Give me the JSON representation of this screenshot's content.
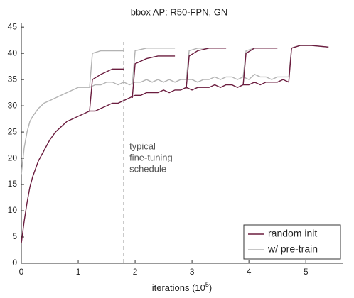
{
  "chart_data": {
    "type": "line",
    "title": "bbox AP: R50-FPN, GN",
    "xlabel": [
      "iterations (10",
      "5",
      ")"
    ],
    "x": [
      0,
      0.05,
      0.1,
      0.15,
      0.2,
      0.3,
      0.4,
      0.5,
      0.6,
      0.7,
      0.8,
      0.9,
      1.0,
      1.1,
      1.2,
      1.3,
      1.4,
      1.5,
      1.6,
      1.7,
      1.8,
      1.9,
      2.0,
      2.1,
      2.2,
      2.3,
      2.4,
      2.5,
      2.6,
      2.7,
      2.8,
      2.9,
      3.0,
      3.1,
      3.2,
      3.3,
      3.4,
      3.5,
      3.6,
      3.7,
      3.8,
      3.9,
      4.0,
      4.1,
      4.2,
      4.3,
      4.4,
      4.5,
      4.6,
      4.7
    ],
    "series": [
      {
        "name": "random init",
        "color": "#6b1d3f",
        "values": [
          3.8,
          8,
          11.5,
          14.5,
          16.5,
          19.5,
          21.5,
          23.5,
          25,
          26,
          27,
          27.5,
          28,
          28.5,
          29,
          29,
          29.5,
          30,
          30.5,
          30.5,
          31,
          31.5,
          32,
          32,
          32.5,
          32.5,
          32.5,
          33,
          32.5,
          33,
          33,
          33.5,
          33,
          33.5,
          33.5,
          33.5,
          34,
          33.5,
          34,
          34,
          33.5,
          34,
          34,
          34.5,
          34,
          34.5,
          34.5,
          34.5,
          35,
          34.5
        ],
        "branches": [
          {
            "x": [
              1.2,
              1.25,
              1.4,
              1.6,
              1.8
            ],
            "values": [
              29,
              35,
              36,
              37,
              37
            ]
          },
          {
            "x": [
              1.95,
              2.0,
              2.2,
              2.4,
              2.7
            ],
            "values": [
              31.5,
              38,
              39,
              39.5,
              39.5
            ]
          },
          {
            "x": [
              2.9,
              2.95,
              3.1,
              3.3,
              3.6
            ],
            "values": [
              33.5,
              39.5,
              40.5,
              41,
              41
            ]
          },
          {
            "x": [
              3.9,
              3.95,
              4.1,
              4.3,
              4.5
            ],
            "values": [
              34,
              40,
              41,
              41,
              41
            ]
          },
          {
            "x": [
              4.7,
              4.75,
              4.9,
              5.1,
              5.4
            ],
            "values": [
              34.5,
              41,
              41.5,
              41.5,
              41.2
            ]
          }
        ]
      },
      {
        "name": "w/ pre-train",
        "color": "#b3b3b3",
        "values": [
          17,
          22,
          25,
          27,
          28,
          29.5,
          30.5,
          31,
          31.5,
          32,
          32.5,
          33,
          33.5,
          33.5,
          33.5,
          34,
          34,
          34.5,
          34.5,
          34,
          34.5,
          34,
          34.5,
          34.5,
          35,
          34.5,
          35,
          34.5,
          35,
          34.5,
          35,
          35,
          35,
          34.5,
          35,
          35,
          35.5,
          35,
          35.5,
          35.5,
          35,
          35.5,
          35,
          36,
          35.5,
          35.5,
          35,
          35.5,
          35.5,
          35.5
        ],
        "branches": [
          {
            "x": [
              1.2,
              1.25,
              1.4,
              1.6,
              1.8
            ],
            "values": [
              33.5,
              40,
              40.5,
              40.5,
              40.5
            ]
          },
          {
            "x": [
              1.95,
              2.0,
              2.2,
              2.4,
              2.7
            ],
            "values": [
              34,
              40.5,
              41,
              41,
              41
            ]
          },
          {
            "x": [
              2.9,
              2.95,
              3.1,
              3.3,
              3.6
            ],
            "values": [
              35,
              40.5,
              41,
              41,
              41
            ]
          },
          {
            "x": [
              3.9,
              3.95,
              4.1,
              4.3,
              4.5
            ],
            "values": [
              35.5,
              40.5,
              41,
              41,
              41
            ]
          },
          {
            "x": [
              4.7,
              4.75,
              4.9,
              5.1,
              5.4
            ],
            "values": [
              35.5,
              41,
              41.5,
              41.5,
              41.2
            ]
          }
        ]
      }
    ],
    "xlim": [
      0,
      5.66
    ],
    "xticks": [
      0,
      1,
      2,
      3,
      4,
      5
    ],
    "ylim": [
      0,
      45.7
    ],
    "yticks": [
      0,
      5,
      10,
      15,
      20,
      25,
      30,
      35,
      40,
      45
    ],
    "vline": {
      "x": 1.8,
      "label": [
        "typical",
        "fine-tuning",
        "schedule"
      ]
    },
    "legend": "lower right"
  }
}
